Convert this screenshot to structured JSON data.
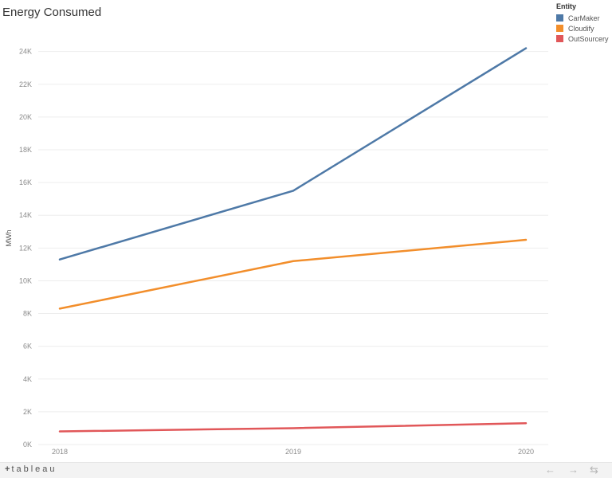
{
  "page": {
    "title": "Energy Consumed"
  },
  "legend": {
    "title": "Entity"
  },
  "chart_data": {
    "type": "line",
    "title": "Energy Consumed",
    "xlabel": "",
    "ylabel": "MWh",
    "x": [
      "2018",
      "2019",
      "2020"
    ],
    "ylim": [
      0,
      25200
    ],
    "y_ticks": [
      0,
      2000,
      4000,
      6000,
      8000,
      10000,
      12000,
      14000,
      16000,
      18000,
      20000,
      22000,
      24000
    ],
    "y_tick_labels": [
      "0K",
      "2K",
      "4K",
      "6K",
      "8K",
      "10K",
      "12K",
      "14K",
      "16K",
      "18K",
      "20K",
      "22K",
      "24K"
    ],
    "grid": true,
    "legend_position": "top-right",
    "series": [
      {
        "name": "CarMaker",
        "color": "#4e79a7",
        "values": [
          11300,
          15500,
          24200
        ]
      },
      {
        "name": "Cloudify",
        "color": "#f28e2b",
        "values": [
          8300,
          11200,
          12500
        ]
      },
      {
        "name": "OutSourcery",
        "color": "#e15759",
        "values": [
          800,
          1000,
          1300
        ]
      }
    ]
  },
  "footer": {
    "brand": "tableau",
    "brand_mark": "+",
    "undo_glyph": "←",
    "redo_glyph": "→",
    "revert_glyph": "⇆"
  }
}
